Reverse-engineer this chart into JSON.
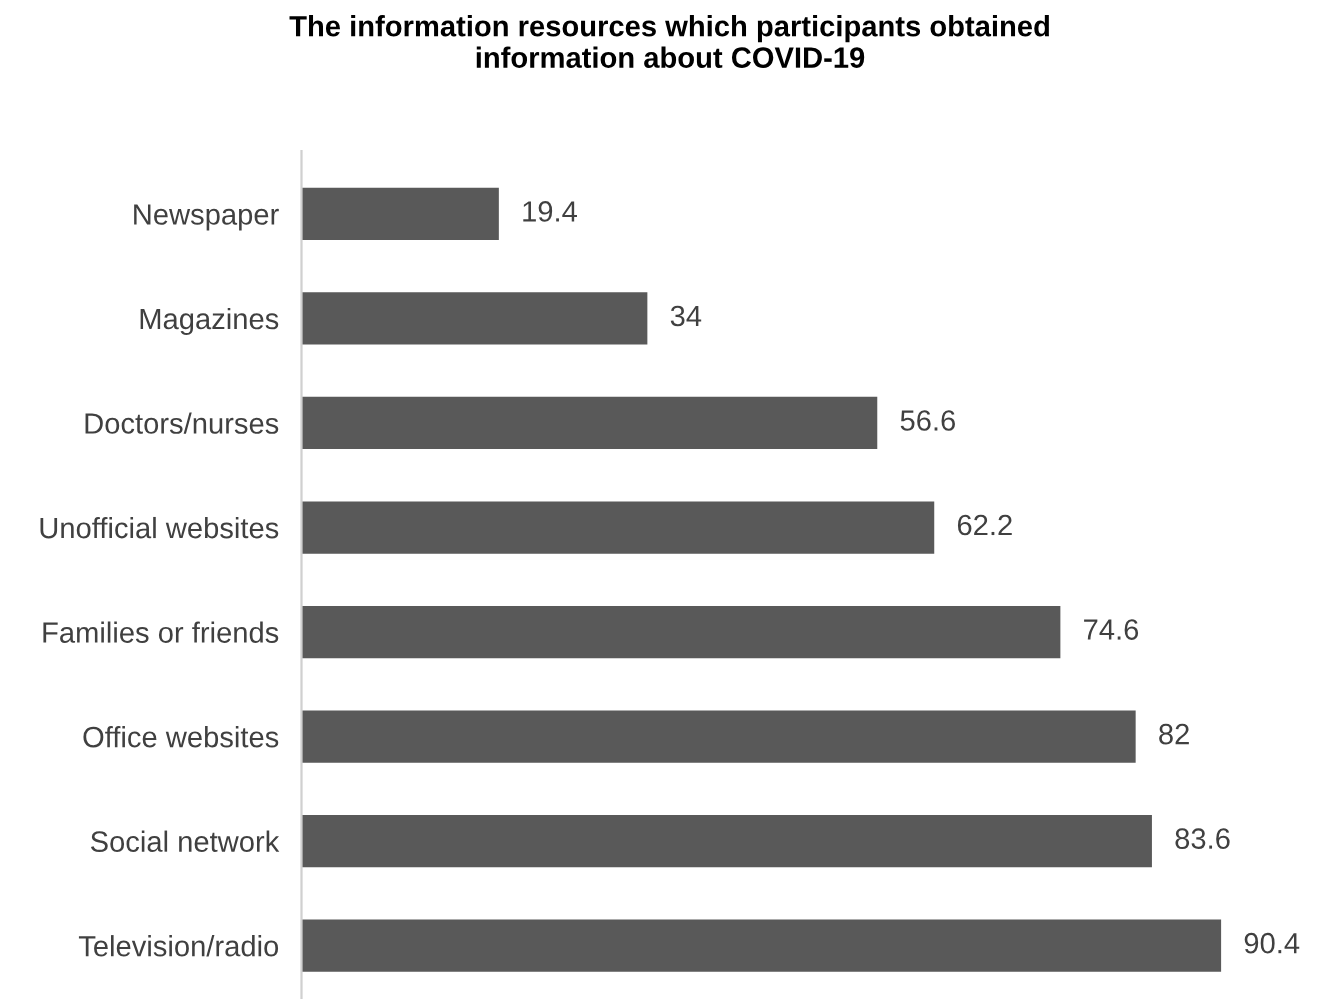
{
  "chart_data": {
    "type": "bar",
    "orientation": "horizontal",
    "title": "The information resources which participants obtained information about COVID-19",
    "categories": [
      "Newspaper",
      "Magazines",
      "Doctors/nurses",
      "Unofficial websites",
      "Families or friends",
      "Office websites",
      "Social network",
      "Television/radio"
    ],
    "values": [
      19.4,
      34,
      56.6,
      62.2,
      74.6,
      82,
      83.6,
      90.4
    ],
    "color": "#595959",
    "data_labels": true,
    "grid": false,
    "legend": false
  }
}
